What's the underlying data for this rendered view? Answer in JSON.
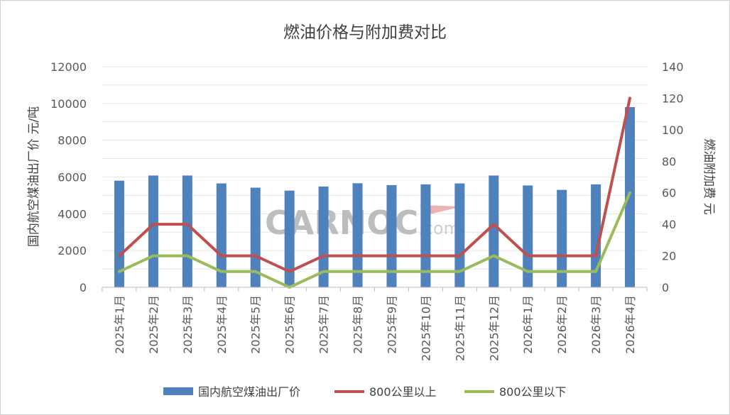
{
  "chart_data": {
    "type": "bar+line",
    "title": "燃油价格与附加费对比",
    "categories": [
      "2025年1月",
      "2025年2月",
      "2025年3月",
      "2025年4月",
      "2025年5月",
      "2025年6月",
      "2025年7月",
      "2025年8月",
      "2025年9月",
      "2025年10月",
      "2025年11月",
      "2025年12月",
      "2026年1月",
      "2026年2月",
      "2026年3月",
      "2026年4月"
    ],
    "y_left": {
      "label": "国内航空煤油出厂价   元/吨",
      "min": 0,
      "max": 12000,
      "ticks": [
        "0",
        "2000",
        "4000",
        "6000",
        "8000",
        "10000",
        "12000"
      ]
    },
    "y_right": {
      "label": "燃油附加费  元",
      "min": 0,
      "max": 140,
      "ticks": [
        "0",
        "20",
        "40",
        "60",
        "80",
        "100",
        "120",
        "140"
      ]
    },
    "series": [
      {
        "name": "国内航空煤油出厂价",
        "type": "bar",
        "axis": "left",
        "color": "#4f81bd",
        "values": [
          5800,
          6080,
          6080,
          5650,
          5420,
          5260,
          5480,
          5660,
          5560,
          5600,
          5650,
          6080,
          5540,
          5300,
          5600,
          9800
        ]
      },
      {
        "name": "800公里以上",
        "type": "line",
        "axis": "right",
        "color": "#c0504d",
        "values": [
          20,
          40,
          40,
          20,
          20,
          10,
          20,
          20,
          20,
          20,
          20,
          40,
          20,
          20,
          20,
          120
        ]
      },
      {
        "name": "800公里以下",
        "type": "line",
        "axis": "right",
        "color": "#9bbb59",
        "values": [
          10,
          20,
          20,
          10,
          10,
          0,
          10,
          10,
          10,
          10,
          10,
          20,
          10,
          10,
          10,
          60
        ]
      }
    ],
    "grid": true,
    "legend": "bottom"
  },
  "watermark": {
    "main": "CARNOC",
    "sub": ".com"
  }
}
